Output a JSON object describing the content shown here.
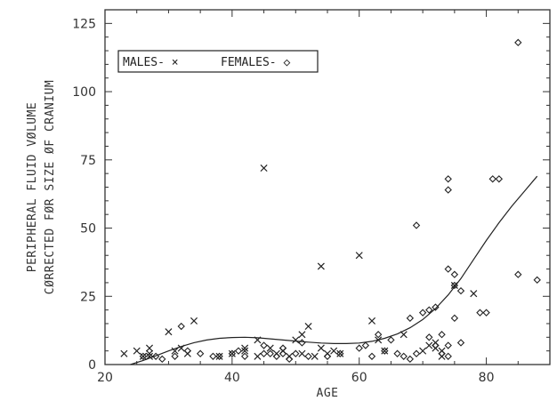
{
  "chart_data": {
    "type": "scatter",
    "xlabel": "AGE",
    "ylabel_lines": [
      "PERIPHERAL FLUID VØLUME",
      "CØRRECTED FØR SIZE ØF CRANIUM"
    ],
    "xlim": [
      20,
      90
    ],
    "ylim": [
      0,
      130
    ],
    "xticks": [
      20,
      40,
      60,
      80
    ],
    "yticks": [
      0,
      25,
      50,
      75,
      100,
      125
    ],
    "grid": false,
    "legend_position": "top-left",
    "colors": {
      "ink": "#222222",
      "axis": "#333333",
      "background": "#ffffff"
    },
    "series": [
      {
        "name": "MALES",
        "legend_label": "MALES- ×",
        "marker": "x",
        "points": [
          [
            23,
            4
          ],
          [
            25,
            5
          ],
          [
            26,
            3
          ],
          [
            27,
            4
          ],
          [
            27,
            6
          ],
          [
            27,
            3
          ],
          [
            30,
            12
          ],
          [
            31,
            5
          ],
          [
            32,
            6
          ],
          [
            33,
            4
          ],
          [
            34,
            16
          ],
          [
            38,
            3
          ],
          [
            40,
            4
          ],
          [
            42,
            5
          ],
          [
            42,
            6
          ],
          [
            44,
            3
          ],
          [
            44,
            9
          ],
          [
            45,
            72
          ],
          [
            46,
            6
          ],
          [
            47,
            4
          ],
          [
            48,
            5
          ],
          [
            49,
            3
          ],
          [
            50,
            9
          ],
          [
            51,
            11
          ],
          [
            51,
            4
          ],
          [
            52,
            14
          ],
          [
            53,
            3
          ],
          [
            54,
            36
          ],
          [
            54,
            6
          ],
          [
            55,
            4
          ],
          [
            56,
            5
          ],
          [
            57,
            4
          ],
          [
            60,
            40
          ],
          [
            62,
            16
          ],
          [
            63,
            9
          ],
          [
            64,
            5
          ],
          [
            67,
            11
          ],
          [
            70,
            5
          ],
          [
            71,
            7
          ],
          [
            72,
            8
          ],
          [
            72,
            6
          ],
          [
            73,
            3
          ],
          [
            73,
            5
          ],
          [
            75,
            29
          ],
          [
            78,
            26
          ]
        ]
      },
      {
        "name": "FEMALES",
        "legend_label": "FEMALES- ◇",
        "marker": "diamond",
        "points": [
          [
            26,
            3
          ],
          [
            28,
            3
          ],
          [
            29,
            2
          ],
          [
            31,
            3
          ],
          [
            32,
            14
          ],
          [
            33,
            5
          ],
          [
            35,
            4
          ],
          [
            37,
            3
          ],
          [
            38,
            3
          ],
          [
            40,
            4
          ],
          [
            41,
            5
          ],
          [
            42,
            3
          ],
          [
            45,
            4
          ],
          [
            45,
            7
          ],
          [
            46,
            4
          ],
          [
            47,
            3
          ],
          [
            48,
            4
          ],
          [
            48,
            6
          ],
          [
            49,
            2
          ],
          [
            50,
            4
          ],
          [
            51,
            8
          ],
          [
            52,
            3
          ],
          [
            55,
            3
          ],
          [
            57,
            4
          ],
          [
            60,
            6
          ],
          [
            61,
            7
          ],
          [
            62,
            3
          ],
          [
            63,
            11
          ],
          [
            64,
            5
          ],
          [
            65,
            9
          ],
          [
            66,
            4
          ],
          [
            67,
            3
          ],
          [
            68,
            17
          ],
          [
            68,
            2
          ],
          [
            69,
            51
          ],
          [
            69,
            4
          ],
          [
            70,
            19
          ],
          [
            71,
            20
          ],
          [
            71,
            10
          ],
          [
            72,
            21
          ],
          [
            72,
            7
          ],
          [
            73,
            4
          ],
          [
            73,
            11
          ],
          [
            74,
            68
          ],
          [
            74,
            64
          ],
          [
            74,
            35
          ],
          [
            74,
            7
          ],
          [
            74,
            3
          ],
          [
            75,
            33
          ],
          [
            75,
            29
          ],
          [
            75,
            17
          ],
          [
            76,
            27
          ],
          [
            76,
            8
          ],
          [
            79,
            19
          ],
          [
            80,
            19
          ],
          [
            81,
            68
          ],
          [
            82,
            68
          ],
          [
            85,
            118
          ],
          [
            85,
            33
          ],
          [
            88,
            31
          ]
        ]
      }
    ],
    "trend_curve": {
      "x": [
        24,
        26,
        28,
        30,
        32,
        34,
        36,
        38,
        40,
        42,
        44,
        46,
        48,
        50,
        52,
        54,
        56,
        58,
        60,
        62,
        64,
        66,
        68,
        70,
        72,
        74,
        76,
        78,
        80,
        82,
        84,
        86,
        88
      ],
      "y": [
        0,
        1.5,
        3.2,
        5.0,
        6.6,
        8.0,
        9.0,
        9.6,
        9.9,
        10.0,
        9.8,
        9.4,
        9.0,
        8.6,
        8.2,
        7.9,
        7.7,
        7.7,
        7.9,
        8.5,
        9.6,
        11.2,
        13.5,
        16.5,
        20.5,
        25.5,
        31.5,
        38.5,
        45.5,
        52.0,
        58.0,
        63.5,
        69.0
      ]
    }
  }
}
